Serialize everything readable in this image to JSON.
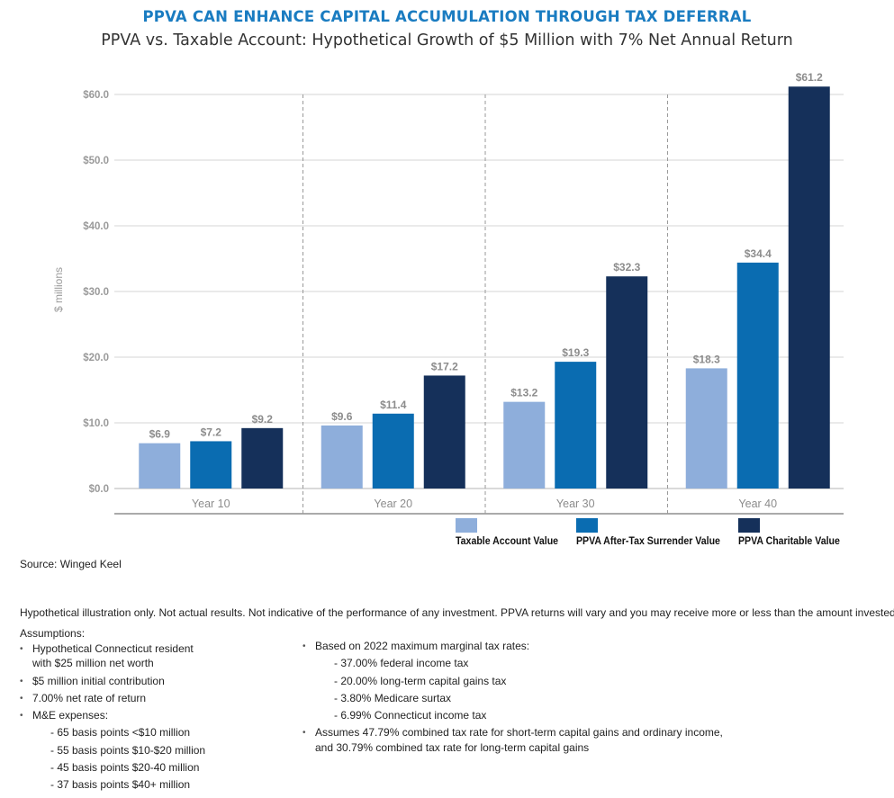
{
  "title": "PPVA CAN ENHANCE CAPITAL ACCUMULATION THROUGH TAX DEFERRAL",
  "subtitle": "PPVA vs. Taxable Account: Hypothetical Growth of $5 Million with 7% Net Annual Return",
  "chart_data": {
    "type": "bar",
    "categories": [
      "Year 10",
      "Year 20",
      "Year 30",
      "Year 40"
    ],
    "series": [
      {
        "name": "Taxable Account Value",
        "values": [
          6.9,
          9.6,
          13.2,
          18.3
        ],
        "labels": [
          "$6.9",
          "$9.6",
          "$13.2",
          "$18.3"
        ],
        "color": "#8eaedb"
      },
      {
        "name": "PPVA After-Tax Surrender Value",
        "values": [
          7.2,
          11.4,
          19.3,
          34.4
        ],
        "labels": [
          "$7.2",
          "$11.4",
          "$19.3",
          "$34.4"
        ],
        "color": "#0a6cb1"
      },
      {
        "name": "PPVA Charitable Value",
        "values": [
          9.2,
          17.2,
          32.3,
          61.2
        ],
        "labels": [
          "$9.2",
          "$17.2",
          "$32.3",
          "$61.2"
        ],
        "color": "#15305a"
      }
    ],
    "ylabel": "$ millions",
    "ylim": [
      0,
      60
    ],
    "yticks": [
      0,
      10,
      20,
      30,
      40,
      50,
      60
    ],
    "ytick_labels": [
      "$0.0",
      "$10.0",
      "$20.0",
      "$30.0",
      "$40.0",
      "$50.0",
      "$60.0"
    ],
    "grid": true,
    "legend_position": "bottom-right"
  },
  "source": "Source: Winged Keel",
  "disclaimer": "Hypothetical illustration only. Not actual results. Not indicative of the performance of any investment. PPVA returns will vary and you may receive more or less than the amount invested.",
  "assumptions": {
    "title": "Assumptions:",
    "left": {
      "resident_line1": "Hypothetical Connecticut resident",
      "resident_line2": "with $25 million net worth",
      "initial": "$5 million initial contribution",
      "rate": "7.00% net rate of return",
      "me": "M&E expenses:",
      "me_items": [
        "- 65 basis points <$10 million",
        "- 55 basis points $10-$20 million",
        "- 45 basis points $20-40 million",
        "- 37 basis points $40+ million"
      ]
    },
    "right": {
      "based": "Based on 2022 maximum marginal tax rates:",
      "rates": [
        "- 37.00% federal income tax",
        "- 20.00% long-term capital gains tax",
        "- 3.80% Medicare surtax",
        "- 6.99% Connecticut income tax"
      ],
      "combined_line1": "Assumes 47.79% combined tax rate for short-term capital gains and ordinary income,",
      "combined_line2": "and 30.79% combined tax rate for long-term capital gains"
    }
  }
}
